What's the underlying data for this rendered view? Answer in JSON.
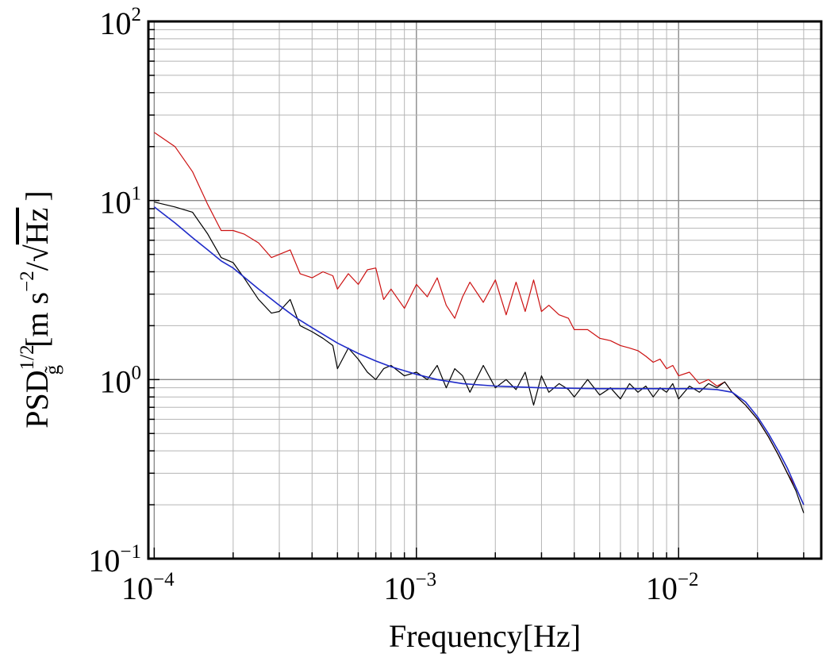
{
  "chart_data": {
    "type": "line",
    "xscale": "log",
    "yscale": "log",
    "xlim": [
      9.5e-05,
      0.035
    ],
    "ylim": [
      0.1,
      100
    ],
    "xlabel": "Frequency[Hz]",
    "ylabel": {
      "base": "PSD",
      "subscript": "g̃",
      "superscript": "1/2",
      "units_open": "[m s",
      "units_exp": "−2",
      "units_slash": "/",
      "units_sqrt": "Hz",
      "units_close": "]"
    },
    "x_ticks": [
      {
        "value": 0.0001,
        "base": "10",
        "exp": "−4"
      },
      {
        "value": 0.001,
        "base": "10",
        "exp": "−3"
      },
      {
        "value": 0.01,
        "base": "10",
        "exp": "−2"
      }
    ],
    "y_ticks": [
      {
        "value": 0.1,
        "base": "10",
        "exp": "−1"
      },
      {
        "value": 1,
        "base": "10",
        "exp": "0"
      },
      {
        "value": 10,
        "base": "10",
        "exp": "1"
      },
      {
        "value": 100,
        "base": "10",
        "exp": "2"
      }
    ],
    "grid": true,
    "series": [
      {
        "name": "red",
        "color": "#cc1111",
        "x": [
          0.0001,
          0.00012,
          0.00014,
          0.00016,
          0.00018,
          0.0002,
          0.00022,
          0.00025,
          0.00028,
          0.0003,
          0.00033,
          0.00036,
          0.0004,
          0.00044,
          0.00048,
          0.0005,
          0.00055,
          0.0006,
          0.00065,
          0.0007,
          0.00075,
          0.0008,
          0.0009,
          0.001,
          0.0011,
          0.0012,
          0.0013,
          0.0014,
          0.0015,
          0.0016,
          0.0018,
          0.002,
          0.0022,
          0.0024,
          0.0026,
          0.0028,
          0.003,
          0.0032,
          0.0035,
          0.0038,
          0.004,
          0.0045,
          0.005,
          0.0055,
          0.006,
          0.0065,
          0.007,
          0.0075,
          0.008,
          0.0085,
          0.009,
          0.0095,
          0.01,
          0.011,
          0.012,
          0.013,
          0.014,
          0.015,
          0.016,
          0.018,
          0.02,
          0.022,
          0.024,
          0.026,
          0.028,
          0.03
        ],
        "y": [
          24,
          20,
          14.5,
          9.5,
          6.8,
          6.8,
          6.5,
          5.8,
          4.8,
          5.0,
          5.3,
          3.9,
          3.7,
          4.0,
          3.8,
          3.2,
          3.9,
          3.4,
          4.1,
          4.2,
          2.8,
          3.2,
          2.5,
          3.4,
          2.9,
          3.7,
          2.6,
          2.2,
          2.9,
          3.5,
          2.7,
          3.6,
          2.3,
          3.5,
          2.4,
          3.6,
          2.4,
          2.6,
          2.3,
          2.2,
          1.9,
          1.9,
          1.7,
          1.65,
          1.55,
          1.5,
          1.45,
          1.35,
          1.25,
          1.3,
          1.15,
          1.2,
          1.05,
          1.1,
          0.95,
          1.0,
          0.92,
          0.97,
          0.85,
          0.72,
          0.6,
          0.48,
          0.38,
          0.3,
          0.25,
          0.2
        ]
      },
      {
        "name": "black",
        "color": "#000000",
        "x": [
          0.0001,
          0.00012,
          0.00014,
          0.00016,
          0.00018,
          0.0002,
          0.00022,
          0.00025,
          0.00028,
          0.0003,
          0.00033,
          0.00036,
          0.0004,
          0.00044,
          0.00048,
          0.0005,
          0.00055,
          0.0006,
          0.00065,
          0.0007,
          0.00075,
          0.0008,
          0.0009,
          0.001,
          0.0011,
          0.0012,
          0.0013,
          0.0014,
          0.0015,
          0.0016,
          0.0018,
          0.002,
          0.0022,
          0.0024,
          0.0026,
          0.0028,
          0.003,
          0.0032,
          0.0035,
          0.0038,
          0.004,
          0.0045,
          0.005,
          0.0055,
          0.006,
          0.0065,
          0.007,
          0.0075,
          0.008,
          0.0085,
          0.009,
          0.0095,
          0.01,
          0.011,
          0.012,
          0.013,
          0.014,
          0.015,
          0.016,
          0.018,
          0.02,
          0.022,
          0.024,
          0.026,
          0.028,
          0.03
        ],
        "y": [
          9.8,
          9.2,
          8.6,
          6.5,
          4.8,
          4.5,
          3.7,
          2.8,
          2.35,
          2.4,
          2.8,
          2.0,
          1.85,
          1.7,
          1.55,
          1.15,
          1.5,
          1.3,
          1.1,
          1.0,
          1.15,
          1.2,
          1.05,
          1.1,
          1.0,
          1.2,
          0.9,
          1.15,
          1.05,
          0.85,
          1.2,
          0.9,
          1.0,
          0.88,
          1.1,
          0.72,
          1.05,
          0.85,
          0.95,
          0.88,
          0.8,
          1.0,
          0.82,
          0.9,
          0.78,
          0.95,
          0.85,
          0.92,
          0.8,
          0.9,
          0.85,
          0.95,
          0.78,
          0.92,
          0.85,
          0.95,
          0.9,
          0.97,
          0.85,
          0.72,
          0.6,
          0.48,
          0.38,
          0.3,
          0.24,
          0.18
        ]
      },
      {
        "name": "blue",
        "color": "#1f2bc8",
        "x": [
          0.0001,
          0.00012,
          0.00014,
          0.00016,
          0.00018,
          0.0002,
          0.00025,
          0.0003,
          0.00035,
          0.0004,
          0.0005,
          0.0006,
          0.0007,
          0.0008,
          0.001,
          0.0012,
          0.0015,
          0.002,
          0.003,
          0.005,
          0.008,
          0.01,
          0.012,
          0.014,
          0.016,
          0.018,
          0.02,
          0.022,
          0.024,
          0.026,
          0.028,
          0.03
        ],
        "y": [
          9.2,
          7.5,
          6.2,
          5.3,
          4.6,
          4.2,
          3.2,
          2.6,
          2.2,
          1.95,
          1.6,
          1.4,
          1.27,
          1.18,
          1.07,
          1.0,
          0.95,
          0.92,
          0.9,
          0.89,
          0.89,
          0.89,
          0.89,
          0.88,
          0.85,
          0.75,
          0.62,
          0.5,
          0.4,
          0.32,
          0.25,
          0.2
        ]
      }
    ]
  }
}
